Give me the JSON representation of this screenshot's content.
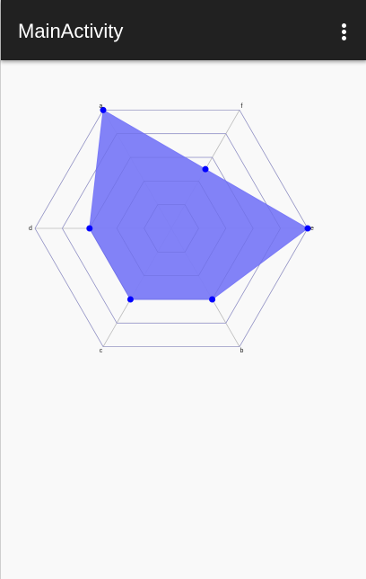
{
  "toolbar": {
    "title": "MainActivity",
    "overflow_icon": "more-vert-icon"
  },
  "chart_data": {
    "type": "radar",
    "axes": [
      "a",
      "b",
      "c",
      "d",
      "e",
      "f"
    ],
    "values": [
      1.0,
      0.6,
      0.6,
      0.6,
      1.0,
      0.5
    ],
    "max": 1.0,
    "levels": 5,
    "fill_color": "#7b7bf7",
    "point_color": "#0000ff",
    "grid_color": "#bbbbbb"
  }
}
